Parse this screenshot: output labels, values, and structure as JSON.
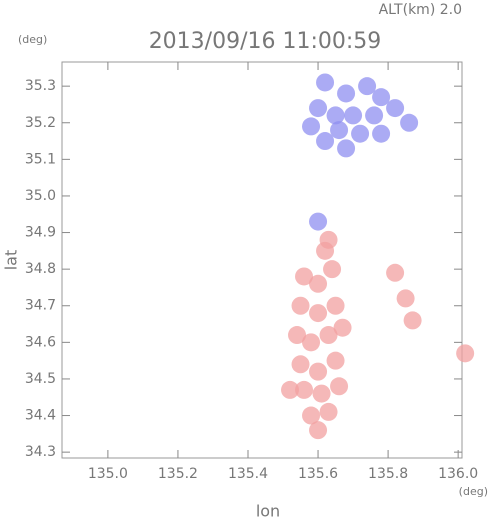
{
  "chart_data": {
    "type": "scatter",
    "title": "2013/09/16 11:00:59",
    "subtitle": "ALT(km)  2.0",
    "y_unit": "(deg)",
    "x_unit": "(deg)",
    "x_label": "lon",
    "y_label": "lat",
    "xlim": [
      134.869,
      136.011
    ],
    "ylim": [
      34.284,
      35.366
    ],
    "xticks": [
      {
        "value": 135,
        "label": "135.0"
      },
      135.2,
      135.4,
      135.6,
      135.8,
      {
        "value": 136,
        "label": "136.0"
      }
    ],
    "yticks": [
      34.3,
      34.4,
      34.5,
      34.6,
      34.7,
      34.8,
      34.9,
      {
        "value": 35,
        "label": "35.0"
      },
      35.1,
      35.2,
      35.3
    ],
    "series": [
      {
        "color": "#8f8ff0",
        "x": [
          135.62,
          135.68,
          135.74,
          135.78,
          135.6,
          135.65,
          135.7,
          135.76,
          135.82,
          135.86,
          135.66,
          135.72,
          135.78,
          135.62,
          135.68,
          135.58,
          135.6
        ],
        "y": [
          35.31,
          35.28,
          35.3,
          35.27,
          35.24,
          35.22,
          35.22,
          35.22,
          35.24,
          35.2,
          35.18,
          35.17,
          35.17,
          35.15,
          35.13,
          35.19,
          34.93
        ]
      },
      {
        "color": "#f2a0a0",
        "x": [
          135.56,
          135.6,
          135.64,
          135.55,
          135.6,
          135.65,
          135.54,
          135.58,
          135.63,
          135.67,
          135.55,
          135.6,
          135.65,
          135.56,
          135.61,
          135.66,
          135.58,
          135.63,
          135.6,
          135.62,
          135.63,
          135.82,
          135.85,
          135.87,
          136.02,
          135.52
        ],
        "y": [
          34.78,
          34.76,
          34.8,
          34.7,
          34.68,
          34.7,
          34.62,
          34.6,
          34.62,
          34.64,
          34.54,
          34.52,
          34.55,
          34.47,
          34.46,
          34.48,
          34.4,
          34.41,
          34.36,
          34.85,
          34.88,
          34.79,
          34.72,
          34.66,
          34.57,
          34.47
        ]
      }
    ]
  }
}
